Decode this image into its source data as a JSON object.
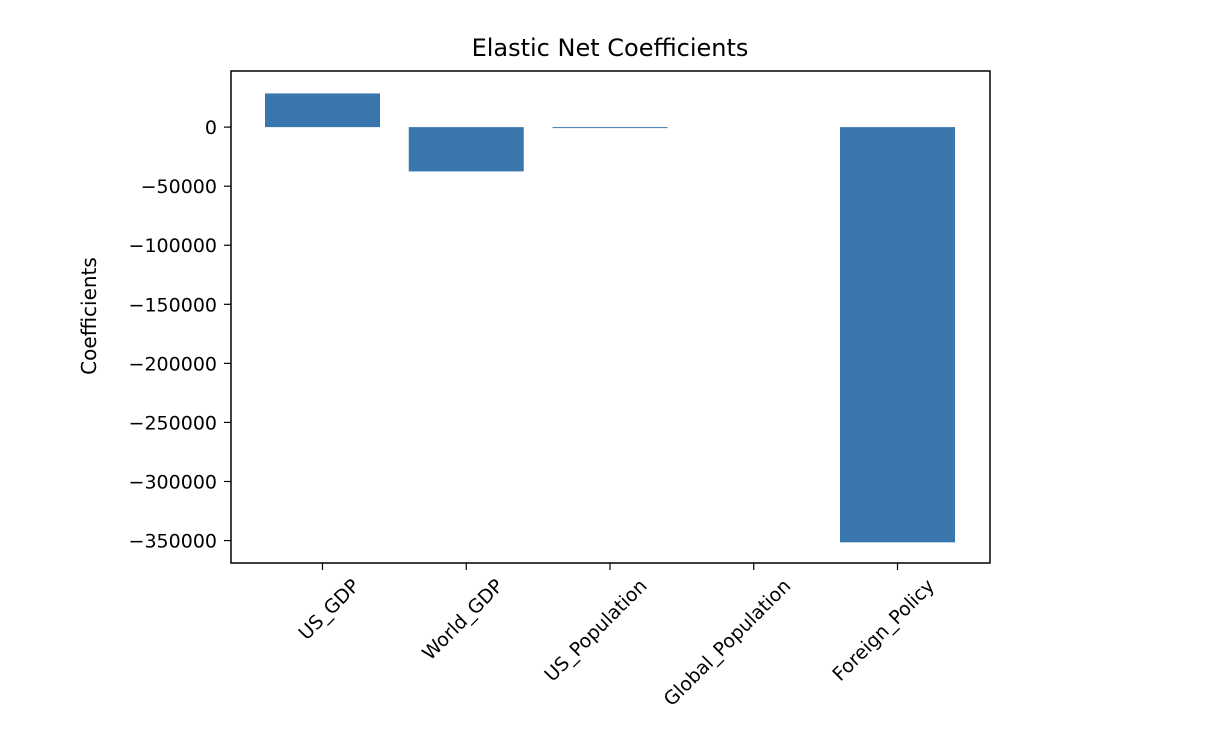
{
  "chart_data": {
    "type": "bar",
    "title": "Elastic Net Coefficients",
    "xlabel": "",
    "ylabel": "Coefficients",
    "categories": [
      "US_GDP",
      "World_GDP",
      "US_Population",
      "Global_Population",
      "Foreign_Policy"
    ],
    "values": [
      28500,
      -37500,
      -500,
      0,
      -351500
    ],
    "ylim": [
      -369000,
      47500
    ],
    "yticks": [
      0,
      -50000,
      -100000,
      -150000,
      -200000,
      -250000,
      -300000,
      -350000
    ],
    "ytick_labels": [
      "0",
      "−50000",
      "−100000",
      "−150000",
      "−200000",
      "−250000",
      "−300000",
      "−350000"
    ],
    "bar_color": "#3a76ae",
    "grid": false,
    "legend": "none"
  }
}
